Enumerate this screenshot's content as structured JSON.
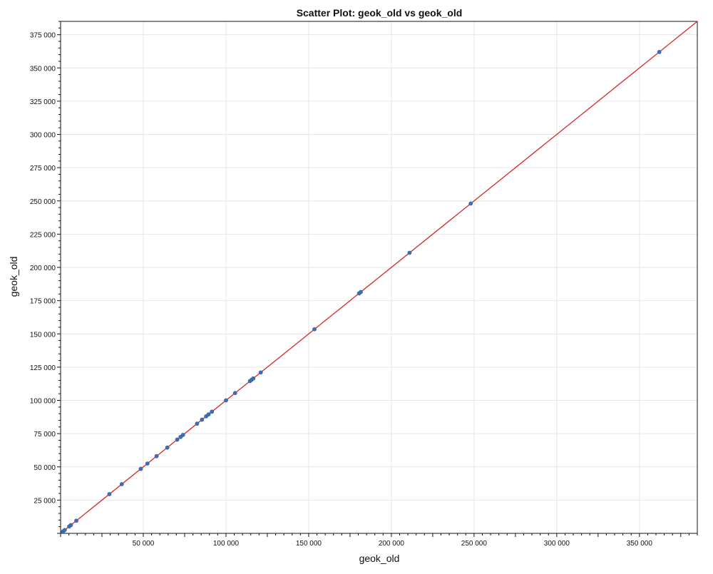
{
  "chart_data": {
    "type": "scatter",
    "title": "Scatter Plot: geok_old vs geok_old",
    "xlabel": "geok_old",
    "ylabel": "geok_old",
    "xlim": [
      0,
      385000
    ],
    "ylim": [
      0,
      385000
    ],
    "x_ticks": [
      50000,
      100000,
      150000,
      200000,
      250000,
      300000,
      350000
    ],
    "x_tick_labels": [
      "50 000",
      "100 000",
      "150 000",
      "200 000",
      "250 000",
      "300 000",
      "350 000"
    ],
    "y_ticks": [
      25000,
      50000,
      75000,
      100000,
      125000,
      150000,
      175000,
      200000,
      225000,
      250000,
      275000,
      300000,
      325000,
      350000,
      375000
    ],
    "y_tick_labels": [
      "25 000",
      "50 000",
      "75 000",
      "100 000",
      "125 000",
      "150 000",
      "175 000",
      "200 000",
      "225 000",
      "250 000",
      "275 000",
      "300 000",
      "325 000",
      "350 000",
      "375 000"
    ],
    "grid": true,
    "series": [
      {
        "points": [
          {
            "x": 1500,
            "y": 1500
          },
          {
            "x": 2500,
            "y": 2500
          },
          {
            "x": 5200,
            "y": 5200
          },
          {
            "x": 6200,
            "y": 6200
          },
          {
            "x": 9500,
            "y": 9500
          },
          {
            "x": 29500,
            "y": 29500
          },
          {
            "x": 37000,
            "y": 37000
          },
          {
            "x": 48500,
            "y": 48500
          },
          {
            "x": 52500,
            "y": 52500
          },
          {
            "x": 58000,
            "y": 58000
          },
          {
            "x": 64500,
            "y": 64500
          },
          {
            "x": 70500,
            "y": 70500
          },
          {
            "x": 72500,
            "y": 72500
          },
          {
            "x": 74000,
            "y": 74000
          },
          {
            "x": 82500,
            "y": 82500
          },
          {
            "x": 85500,
            "y": 85500
          },
          {
            "x": 88000,
            "y": 88000
          },
          {
            "x": 89500,
            "y": 89500
          },
          {
            "x": 91500,
            "y": 91500
          },
          {
            "x": 100000,
            "y": 100000
          },
          {
            "x": 105500,
            "y": 105500
          },
          {
            "x": 114500,
            "y": 114500
          },
          {
            "x": 115500,
            "y": 115500
          },
          {
            "x": 116500,
            "y": 116500
          },
          {
            "x": 121000,
            "y": 121000
          },
          {
            "x": 153500,
            "y": 153500
          },
          {
            "x": 180500,
            "y": 180500
          },
          {
            "x": 181500,
            "y": 181500
          },
          {
            "x": 211000,
            "y": 211000
          },
          {
            "x": 248000,
            "y": 248000
          },
          {
            "x": 362000,
            "y": 362000
          }
        ]
      }
    ],
    "reference_line": "y = x",
    "colors": {
      "points": "#3d6fb6",
      "reference_line": "#d62728",
      "grid": "#e6e6e6",
      "axis": "#111111"
    }
  }
}
